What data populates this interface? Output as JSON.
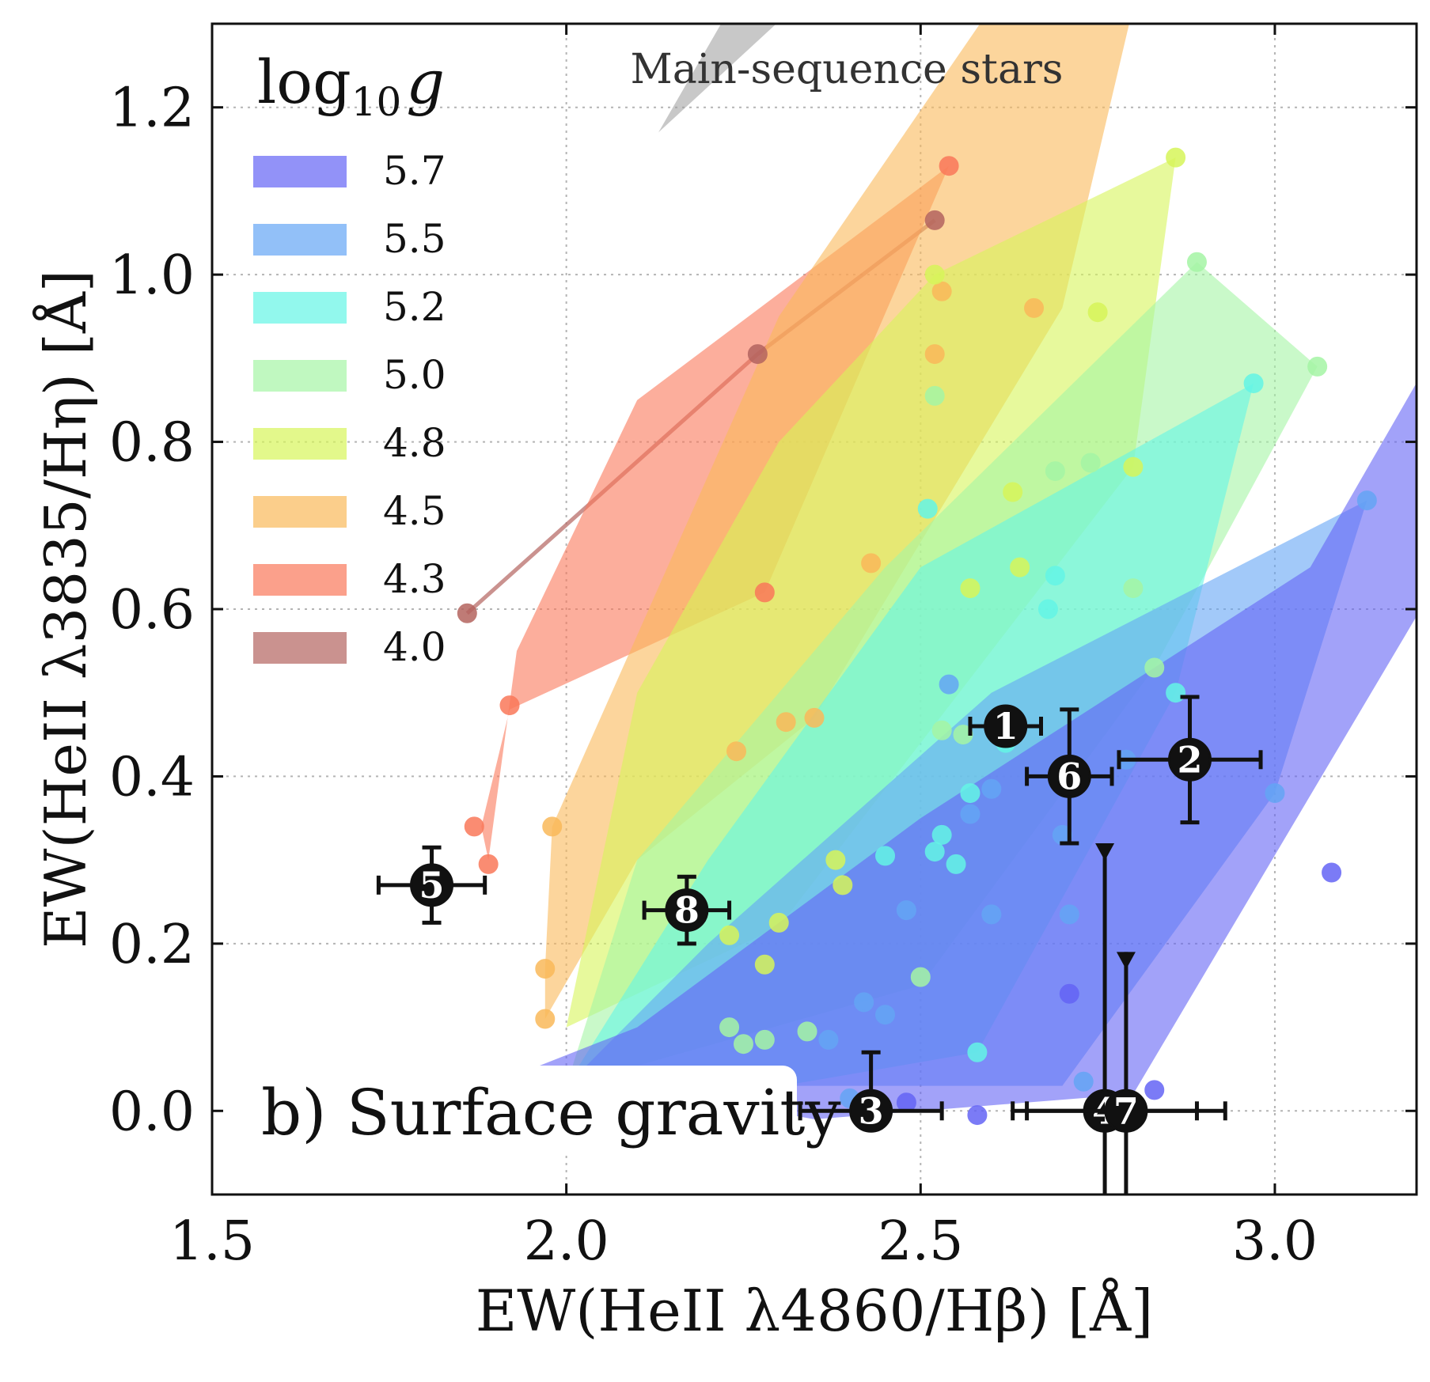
{
  "chart_data": {
    "type": "scatter",
    "title": "",
    "panel_label": "b) Surface gravity",
    "xlabel": "EW(HeII λ4860/Hβ) [Å]",
    "ylabel": "EW(HeII λ3835/Hη) [Å]",
    "xlim": [
      1.5,
      3.2
    ],
    "ylim": [
      -0.1,
      1.3
    ],
    "x_ticks": [
      {
        "value": 1.5,
        "label": "1.5"
      },
      {
        "value": 2.0,
        "label": "2.0"
      },
      {
        "value": 2.5,
        "label": "2.5"
      },
      {
        "value": 3.0,
        "label": "3.0"
      }
    ],
    "y_ticks": [
      {
        "value": 0.0,
        "label": "0.0"
      },
      {
        "value": 0.2,
        "label": "0.2"
      },
      {
        "value": 0.4,
        "label": "0.4"
      },
      {
        "value": 0.6,
        "label": "0.6"
      },
      {
        "value": 0.8,
        "label": "0.8"
      },
      {
        "value": 1.0,
        "label": "1.0"
      },
      {
        "value": 1.2,
        "label": "1.2"
      }
    ],
    "grid": true,
    "legend": {
      "title": "log10 g",
      "title_base": "log",
      "title_sub": "10",
      "title_var": "g",
      "position": "top-left"
    },
    "region_label": "Main-sequence stars",
    "main_sequence_region": [
      [
        2.13,
        1.17
      ],
      [
        2.45,
        1.42
      ],
      [
        2.3,
        1.42
      ]
    ],
    "series": [
      {
        "name": "5.7",
        "color": "#6464f5",
        "hull": [
          [
            1.95,
            0.05
          ],
          [
            2.35,
            -0.01
          ],
          [
            2.8,
            0.02
          ],
          [
            3.22,
            0.62
          ],
          [
            3.22,
            0.9
          ],
          [
            3.05,
            0.65
          ],
          [
            2.5,
            0.35
          ],
          [
            2.1,
            0.1
          ]
        ],
        "points": [
          [
            2.43,
            0.0
          ],
          [
            2.48,
            0.01
          ],
          [
            2.58,
            -0.005
          ],
          [
            2.83,
            0.025
          ],
          [
            3.08,
            0.285
          ],
          [
            2.71,
            0.14
          ]
        ]
      },
      {
        "name": "5.5",
        "color": "#64a5f5",
        "hull": [
          [
            2.0,
            0.03
          ],
          [
            2.7,
            0.03
          ],
          [
            3.0,
            0.38
          ],
          [
            3.13,
            0.73
          ],
          [
            2.6,
            0.5
          ],
          [
            2.2,
            0.2
          ]
        ],
        "points": [
          [
            3.13,
            0.73
          ],
          [
            3.0,
            0.38
          ],
          [
            2.73,
            0.035
          ],
          [
            2.54,
            0.51
          ],
          [
            2.6,
            0.385
          ],
          [
            2.57,
            0.355
          ],
          [
            2.48,
            0.24
          ],
          [
            2.6,
            0.235
          ],
          [
            2.71,
            0.235
          ],
          [
            2.7,
            0.33
          ],
          [
            2.45,
            0.115
          ],
          [
            2.42,
            0.13
          ],
          [
            2.37,
            0.085
          ],
          [
            2.4,
            0.015
          ],
          [
            2.79,
            0.42
          ]
        ]
      },
      {
        "name": "5.2",
        "color": "#64f5e6",
        "hull": [
          [
            2.0,
            0.03
          ],
          [
            2.1,
            0.0
          ],
          [
            2.58,
            0.07
          ],
          [
            2.86,
            0.5
          ],
          [
            2.97,
            0.87
          ],
          [
            2.5,
            0.65
          ],
          [
            2.2,
            0.3
          ]
        ],
        "points": [
          [
            2.97,
            0.87
          ],
          [
            2.86,
            0.5
          ],
          [
            2.58,
            0.07
          ],
          [
            2.68,
            0.6
          ],
          [
            2.69,
            0.64
          ],
          [
            2.51,
            0.72
          ],
          [
            2.53,
            0.33
          ],
          [
            2.55,
            0.295
          ],
          [
            2.52,
            0.31
          ],
          [
            2.45,
            0.305
          ],
          [
            2.57,
            0.38
          ],
          [
            2.62,
            0.44
          ]
        ]
      },
      {
        "name": "5.0",
        "color": "#a5f5a5",
        "hull": [
          [
            2.0,
            0.03
          ],
          [
            2.5,
            0.15
          ],
          [
            2.83,
            0.53
          ],
          [
            3.06,
            0.89
          ],
          [
            2.89,
            1.015
          ],
          [
            2.45,
            0.65
          ],
          [
            2.1,
            0.3
          ]
        ],
        "points": [
          [
            2.89,
            1.015
          ],
          [
            3.06,
            0.89
          ],
          [
            2.83,
            0.53
          ],
          [
            2.8,
            0.625
          ],
          [
            2.74,
            0.775
          ],
          [
            2.69,
            0.765
          ],
          [
            2.5,
            0.16
          ],
          [
            2.23,
            0.1
          ],
          [
            2.25,
            0.08
          ],
          [
            2.28,
            0.085
          ],
          [
            2.34,
            0.095
          ],
          [
            2.56,
            0.45
          ],
          [
            2.52,
            0.855
          ],
          [
            2.53,
            0.455
          ]
        ]
      },
      {
        "name": "4.8",
        "color": "#d7f55a",
        "hull": [
          [
            2.0,
            0.1
          ],
          [
            2.3,
            0.22
          ],
          [
            2.8,
            0.77
          ],
          [
            2.86,
            1.14
          ],
          [
            2.52,
            1.0
          ],
          [
            2.3,
            0.8
          ],
          [
            2.1,
            0.5
          ]
        ],
        "points": [
          [
            2.86,
            1.14
          ],
          [
            2.75,
            0.955
          ],
          [
            2.8,
            0.77
          ],
          [
            2.52,
            1.0
          ],
          [
            2.63,
            0.74
          ],
          [
            2.64,
            0.65
          ],
          [
            2.57,
            0.625
          ],
          [
            2.38,
            0.3
          ],
          [
            2.39,
            0.27
          ],
          [
            2.23,
            0.21
          ],
          [
            2.3,
            0.225
          ],
          [
            2.28,
            0.175
          ]
        ]
      },
      {
        "name": "4.5",
        "color": "#fab95a",
        "hull": [
          [
            1.97,
            0.11
          ],
          [
            2.1,
            0.3
          ],
          [
            2.35,
            0.47
          ],
          [
            2.7,
            0.96
          ],
          [
            2.8,
            1.32
          ],
          [
            2.6,
            1.32
          ],
          [
            2.3,
            0.95
          ],
          [
            1.98,
            0.34
          ],
          [
            1.97,
            0.17
          ]
        ],
        "points": [
          [
            1.97,
            0.11
          ],
          [
            1.97,
            0.17
          ],
          [
            1.98,
            0.34
          ],
          [
            2.24,
            0.43
          ],
          [
            2.31,
            0.465
          ],
          [
            2.35,
            0.47
          ],
          [
            2.43,
            0.655
          ],
          [
            2.52,
            0.905
          ],
          [
            2.53,
            0.98
          ],
          [
            2.66,
            0.96
          ]
        ]
      },
      {
        "name": "4.3",
        "color": "#fa785a",
        "hull": [
          [
            1.89,
            0.3
          ],
          [
            1.88,
            0.34
          ],
          [
            1.92,
            0.48
          ],
          [
            2.28,
            0.62
          ],
          [
            2.54,
            1.13
          ],
          [
            2.1,
            0.85
          ],
          [
            1.93,
            0.55
          ]
        ],
        "points": [
          [
            1.89,
            0.295
          ],
          [
            1.87,
            0.34
          ],
          [
            1.92,
            0.485
          ],
          [
            2.28,
            0.62
          ],
          [
            2.54,
            1.13
          ]
        ]
      },
      {
        "name": "4.0",
        "color": "#b4645f",
        "hull": [
          [
            1.86,
            0.595
          ],
          [
            2.27,
            0.905
          ],
          [
            2.52,
            1.065
          ]
        ],
        "points": [
          [
            1.86,
            0.595
          ],
          [
            2.27,
            0.905
          ],
          [
            2.52,
            1.065
          ]
        ]
      }
    ],
    "observed_objects": [
      {
        "label": "1",
        "x": 2.62,
        "y": 0.46,
        "xerr": [
          0.05,
          0.05
        ],
        "yerr": [
          0.0,
          0.0
        ]
      },
      {
        "label": "2",
        "x": 2.88,
        "y": 0.42,
        "xerr": [
          0.1,
          0.1
        ],
        "yerr": [
          0.075,
          0.075
        ]
      },
      {
        "label": "3",
        "x": 2.43,
        "y": 0.0,
        "xerr": [
          0.1,
          0.1
        ],
        "yerr": [
          0.02,
          0.07
        ]
      },
      {
        "label": "4",
        "x": 2.76,
        "y": 0.0,
        "xerr": [
          0.13,
          0.13
        ],
        "upper_limit": 0.32
      },
      {
        "label": "5",
        "x": 1.81,
        "y": 0.27,
        "xerr": [
          0.075,
          0.075
        ],
        "yerr": [
          0.045,
          0.045
        ]
      },
      {
        "label": "6",
        "x": 2.71,
        "y": 0.4,
        "xerr": [
          0.06,
          0.06
        ],
        "yerr": [
          0.08,
          0.08
        ]
      },
      {
        "label": "7",
        "x": 2.79,
        "y": 0.0,
        "xerr": [
          0.14,
          0.14
        ],
        "upper_limit": 0.19
      },
      {
        "label": "8",
        "x": 2.17,
        "y": 0.24,
        "xerr": [
          0.06,
          0.06
        ],
        "yerr": [
          0.04,
          0.04
        ]
      }
    ]
  }
}
